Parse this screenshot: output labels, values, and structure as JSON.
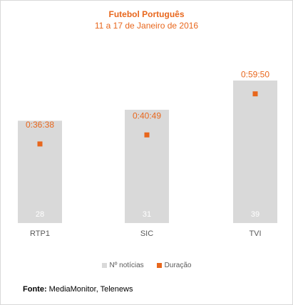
{
  "chart_data": {
    "type": "bar",
    "title": "Futebol Português",
    "subtitle": "11 a 17 de Janeiro de 2016",
    "categories": [
      "RTP1",
      "SIC",
      "TVI"
    ],
    "series": [
      {
        "name": "Nº notícias",
        "type": "bar",
        "values": [
          28,
          31,
          39
        ],
        "color": "#d9d9d9"
      },
      {
        "name": "Duração",
        "type": "marker",
        "values": [
          "0:36:38",
          "0:40:49",
          "0:59:50"
        ],
        "seconds": [
          2198,
          2449,
          3590
        ],
        "color": "#e8671d"
      }
    ],
    "ylim": [
      0,
      39
    ],
    "y2lim": [
      0,
      3960
    ],
    "grid": false,
    "legend_position": "bottom"
  },
  "source": {
    "label": "Fonte:",
    "text": "MediaMonitor, Telenews"
  },
  "colors": {
    "accent": "#e8671d",
    "bar": "#d9d9d9",
    "axis_text": "#595959",
    "bar_label": "#ffffff"
  }
}
